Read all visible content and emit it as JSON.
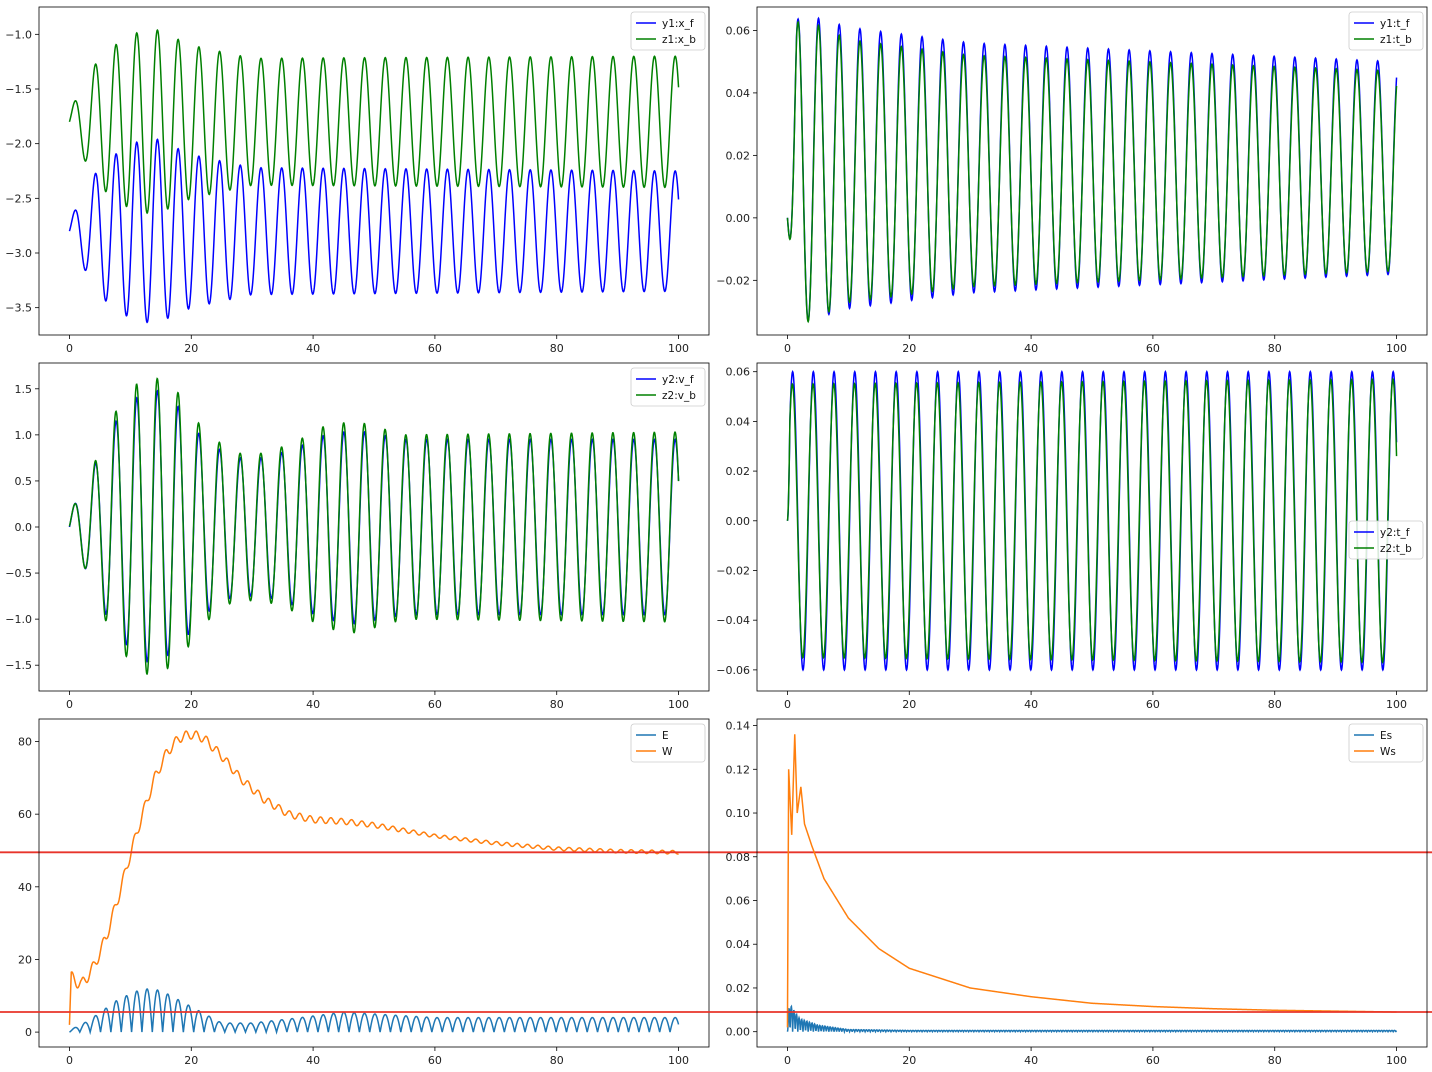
{
  "colors": {
    "blue": "#0000ff",
    "green": "#008000",
    "tab_blue": "#1f77b4",
    "tab_orange": "#ff7f0e",
    "red": "#e8342a"
  },
  "chart_data": [
    {
      "type": "line",
      "xlim": [
        -5,
        105
      ],
      "ylim": [
        -3.75,
        -0.75
      ],
      "xticks": [
        0,
        20,
        40,
        60,
        80,
        100
      ],
      "yticks": [
        -3.5,
        -3.0,
        -2.5,
        -2.0,
        -1.5,
        -1.0
      ],
      "legend_position": "top-right",
      "series": [
        {
          "name": "y1:x_f",
          "color": "#0000ff",
          "model": {
            "kind": "osc",
            "base": -2.8,
            "center": -2.8,
            "amp_env": [
              [
                0,
                0.1
              ],
              [
                5,
                0.6
              ],
              [
                10,
                0.8
              ],
              [
                14,
                0.85
              ],
              [
                20,
                0.7
              ],
              [
                30,
                0.58
              ],
              [
                100,
                0.55
              ]
            ],
            "period": 3.4,
            "start_phase": 0,
            "shift": 0
          }
        },
        {
          "name": "z1:x_b",
          "color": "#008000",
          "model": {
            "kind": "osc",
            "base": -1.8,
            "center": -1.8,
            "amp_env": [
              [
                0,
                0.1
              ],
              [
                5,
                0.6
              ],
              [
                10,
                0.8
              ],
              [
                14,
                0.85
              ],
              [
                20,
                0.7
              ],
              [
                30,
                0.58
              ],
              [
                100,
                0.6
              ]
            ],
            "period": 3.4,
            "start_phase": 0,
            "shift": 0
          }
        }
      ]
    },
    {
      "type": "line",
      "xlim": [
        -5,
        105
      ],
      "ylim": [
        -0.0375,
        0.0675
      ],
      "xticks": [
        0,
        20,
        40,
        60,
        80,
        100
      ],
      "yticks": [
        -0.02,
        0.0,
        0.02,
        0.04,
        0.06
      ],
      "legend_position": "top-right",
      "series": [
        {
          "name": "y1:t_f",
          "color": "#0000ff",
          "model": {
            "kind": "osc",
            "base": 0.0,
            "center": 0.016,
            "amp_env": [
              [
                0,
                0.0
              ],
              [
                1.5,
                0.05
              ],
              [
                10,
                0.045
              ],
              [
                30,
                0.04
              ],
              [
                100,
                0.034
              ]
            ],
            "period": 3.4,
            "start_phase": -1.5708,
            "shift": 0
          }
        },
        {
          "name": "z1:t_b",
          "color": "#008000",
          "model": {
            "kind": "osc",
            "base": 0.0,
            "center": 0.015,
            "amp_env": [
              [
                0,
                0.0
              ],
              [
                1.5,
                0.05
              ],
              [
                10,
                0.042
              ],
              [
                30,
                0.037
              ],
              [
                100,
                0.032
              ]
            ],
            "period": 3.4,
            "start_phase": -1.5708,
            "shift": 0
          }
        }
      ]
    },
    {
      "type": "line",
      "xlim": [
        -5,
        105
      ],
      "ylim": [
        -1.78,
        1.78
      ],
      "xticks": [
        0,
        20,
        40,
        60,
        80,
        100
      ],
      "yticks": [
        -1.5,
        -1.0,
        -0.5,
        0.0,
        0.5,
        1.0,
        1.5
      ],
      "legend_position": "top-right",
      "series": [
        {
          "name": "y2:v_f",
          "color": "#0000ff",
          "model": {
            "kind": "osc",
            "base": 0.0,
            "center": 0.0,
            "amp_env": [
              [
                0,
                0.15
              ],
              [
                3,
                0.5
              ],
              [
                7,
                1.1
              ],
              [
                11,
                1.4
              ],
              [
                14,
                1.5
              ],
              [
                18,
                1.3
              ],
              [
                22,
                0.95
              ],
              [
                27,
                0.75
              ],
              [
                32,
                0.75
              ],
              [
                37,
                0.85
              ],
              [
                42,
                1.0
              ],
              [
                47,
                1.05
              ],
              [
                55,
                0.95
              ],
              [
                100,
                0.95
              ]
            ],
            "period": 3.4,
            "start_phase": 0,
            "shift": 0
          }
        },
        {
          "name": "z2:v_b",
          "color": "#008000",
          "model": {
            "kind": "osc",
            "base": 0.0,
            "center": 0.0,
            "amp_env": [
              [
                0,
                0.15
              ],
              [
                3,
                0.5
              ],
              [
                7,
                1.2
              ],
              [
                11,
                1.55
              ],
              [
                14,
                1.63
              ],
              [
                18,
                1.45
              ],
              [
                22,
                1.05
              ],
              [
                27,
                0.8
              ],
              [
                32,
                0.8
              ],
              [
                37,
                0.92
              ],
              [
                42,
                1.1
              ],
              [
                47,
                1.15
              ],
              [
                55,
                1.0
              ],
              [
                100,
                1.03
              ]
            ],
            "period": 3.4,
            "start_phase": 0,
            "shift": 0.05
          }
        }
      ]
    },
    {
      "type": "line",
      "xlim": [
        -5,
        105
      ],
      "ylim": [
        -0.0685,
        0.0635
      ],
      "xticks": [
        0,
        20,
        40,
        60,
        80,
        100
      ],
      "yticks": [
        -0.06,
        -0.04,
        -0.02,
        0.0,
        0.02,
        0.04,
        0.06
      ],
      "legend_position": "center-right",
      "series": [
        {
          "name": "y2:t_f",
          "color": "#0000ff",
          "model": {
            "kind": "osc",
            "base": 0.0,
            "center": 0.0,
            "amp_env": [
              [
                0,
                0.0
              ],
              [
                0.4,
                0.06
              ],
              [
                100,
                0.06
              ]
            ],
            "period": 3.4,
            "start_phase": 0,
            "shift": 0
          }
        },
        {
          "name": "z2:t_b",
          "color": "#008000",
          "model": {
            "kind": "osc",
            "base": 0.0,
            "center": 0.0,
            "amp_env": [
              [
                0,
                0.0
              ],
              [
                0.4,
                0.055
              ],
              [
                100,
                0.057
              ]
            ],
            "period": 3.4,
            "start_phase": 0,
            "shift": 0.08
          }
        }
      ]
    },
    {
      "type": "line",
      "xlim": [
        -5,
        105
      ],
      "ylim": [
        -4.1,
        86.2
      ],
      "xticks": [
        0,
        20,
        40,
        60,
        80,
        100
      ],
      "yticks": [
        0,
        20,
        40,
        60,
        80
      ],
      "legend_position": "top-right",
      "hline": {
        "y": 49.5,
        "color": "#e8342a"
      },
      "series": [
        {
          "name": "E",
          "color": "#1f77b4",
          "model": {
            "kind": "rect",
            "amp_env": [
              [
                0,
                0.5
              ],
              [
                3,
                3
              ],
              [
                8,
                9
              ],
              [
                12,
                12
              ],
              [
                15,
                11.5
              ],
              [
                20,
                7
              ],
              [
                25,
                2.5
              ],
              [
                30,
                2.5
              ],
              [
                38,
                4
              ],
              [
                45,
                5.5
              ],
              [
                50,
                5
              ],
              [
                60,
                4
              ],
              [
                100,
                4
              ]
            ],
            "period": 1.7
          }
        },
        {
          "name": "W",
          "color": "#ff7f0e",
          "model": {
            "kind": "smooth",
            "points": [
              [
                0,
                2
              ],
              [
                0.3,
                15
              ],
              [
                2,
                13
              ],
              [
                4,
                18
              ],
              [
                6,
                26
              ],
              [
                8,
                37
              ],
              [
                10,
                49
              ],
              [
                12,
                60
              ],
              [
                14,
                70
              ],
              [
                16,
                77
              ],
              [
                18,
                81
              ],
              [
                20,
                82
              ],
              [
                22,
                81
              ],
              [
                25,
                76
              ],
              [
                28,
                70
              ],
              [
                32,
                64
              ],
              [
                36,
                60
              ],
              [
                40,
                58.5
              ],
              [
                45,
                58
              ],
              [
                50,
                57
              ],
              [
                60,
                54
              ],
              [
                70,
                52
              ],
              [
                80,
                50.5
              ],
              [
                90,
                49.8
              ],
              [
                100,
                49.5
              ]
            ],
            "ripple_amp": 1.2,
            "ripple_period": 1.7,
            "ripple_decay_end": 60
          }
        }
      ]
    },
    {
      "type": "line",
      "xlim": [
        -5,
        105
      ],
      "ylim": [
        -0.007,
        0.143
      ],
      "xticks": [
        0,
        20,
        40,
        60,
        80,
        100
      ],
      "yticks": [
        0.0,
        0.02,
        0.04,
        0.06,
        0.08,
        0.1,
        0.12,
        0.14
      ],
      "legend_position": "top-right",
      "hline": {
        "y": 0.009,
        "color": "#e8342a"
      },
      "series": [
        {
          "name": "Es",
          "color": "#1f77b4",
          "model": {
            "kind": "noisy",
            "points": [
              [
                0,
                0.0
              ],
              [
                0.3,
                0.013
              ],
              [
                2,
                0.006
              ],
              [
                5,
                0.003
              ],
              [
                10,
                0.001
              ],
              [
                20,
                0.0006
              ],
              [
                100,
                0.0006
              ]
            ]
          }
        },
        {
          "name": "Ws",
          "color": "#ff7f0e",
          "model": {
            "kind": "decay",
            "points": [
              [
                0,
                0.002
              ],
              [
                0.2,
                0.12
              ],
              [
                0.7,
                0.09
              ],
              [
                1.2,
                0.136
              ],
              [
                1.6,
                0.1
              ],
              [
                2.2,
                0.112
              ],
              [
                2.8,
                0.095
              ],
              [
                4,
                0.085
              ],
              [
                6,
                0.07
              ],
              [
                10,
                0.052
              ],
              [
                15,
                0.038
              ],
              [
                20,
                0.029
              ],
              [
                30,
                0.02
              ],
              [
                40,
                0.016
              ],
              [
                50,
                0.013
              ],
              [
                60,
                0.0115
              ],
              [
                70,
                0.0105
              ],
              [
                80,
                0.0098
              ],
              [
                90,
                0.0094
              ],
              [
                100,
                0.009
              ]
            ]
          }
        }
      ]
    }
  ]
}
